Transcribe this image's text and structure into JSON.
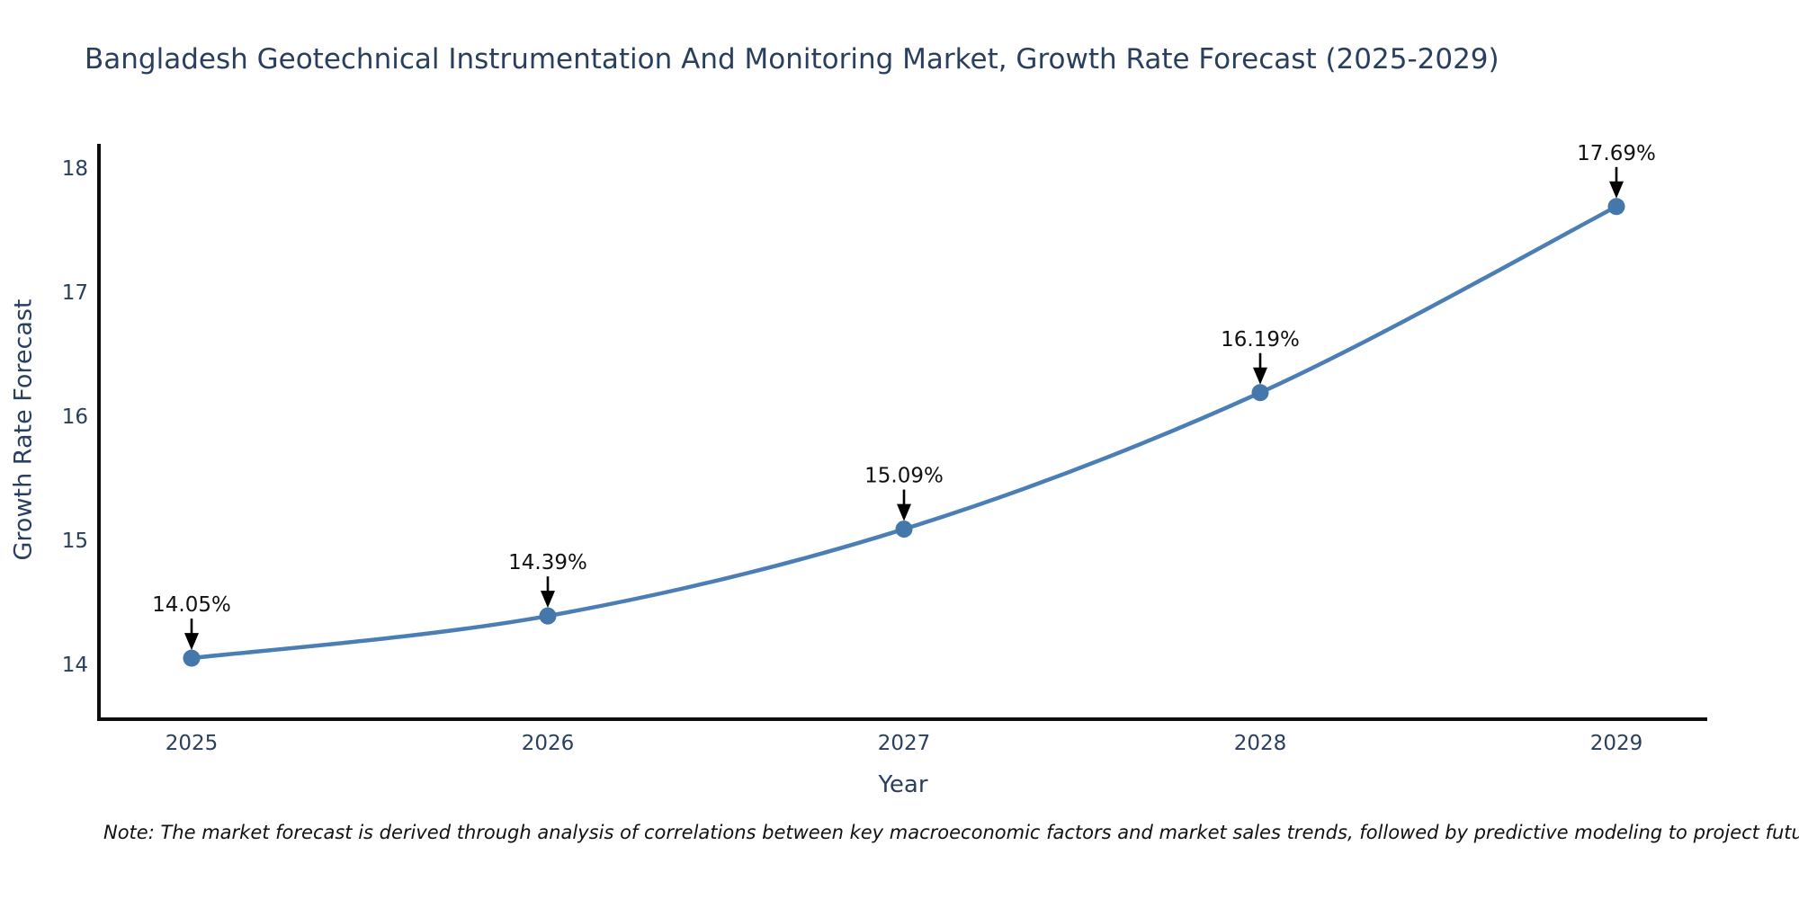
{
  "chart_data": {
    "type": "line",
    "title": "Bangladesh Geotechnical Instrumentation And Monitoring Market, Growth Rate Forecast (2025-2029)",
    "xlabel": "Year",
    "ylabel": "Growth Rate Forecast",
    "x": [
      "2025",
      "2026",
      "2027",
      "2028",
      "2029"
    ],
    "series": [
      {
        "name": "Growth Rate Forecast",
        "values": [
          14.05,
          14.39,
          15.09,
          16.19,
          17.69
        ]
      }
    ],
    "point_labels": [
      "14.05%",
      "14.39%",
      "15.09%",
      "16.19%",
      "17.69%"
    ],
    "yticks": [
      14,
      15,
      16,
      17,
      18
    ],
    "ylim": [
      13.56,
      18.2
    ],
    "grid": false,
    "legend": "none",
    "colors": {
      "line": "#4a7eb5",
      "marker": "#4478ab",
      "axis": "#0d0d0d",
      "tick_text": "#2a3f5f",
      "annotation_text": "#111111",
      "arrow": "#000000",
      "background": "#ffffff"
    },
    "note": "Note: The market forecast is derived through analysis of correlations between key macroeconomic factors and market sales trends, followed by predictive modeling to project future sales"
  }
}
